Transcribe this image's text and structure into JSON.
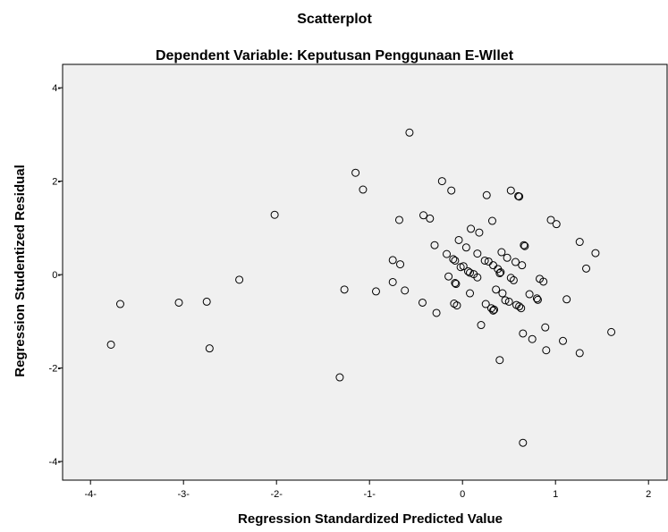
{
  "chart_data": {
    "type": "scatter",
    "title": "Scatterplot",
    "subtitle": "Dependent Variable: Keputusan Penggunaan E-Wllet",
    "xlabel": "Regression Standardized Predicted Value",
    "ylabel": "Regression Studentized Residual",
    "xlim": [
      -4.3,
      2.2
    ],
    "ylim": [
      -4.4,
      4.5
    ],
    "x_ticks": [
      -4,
      -3,
      -2,
      -1,
      0,
      1,
      2
    ],
    "x_tick_labels": [
      "-4-",
      "-3-",
      "-2-",
      "-1-",
      "0",
      "1",
      "2"
    ],
    "y_ticks": [
      4,
      2,
      0,
      -2,
      -4
    ],
    "y_tick_labels": [
      "4-",
      "2-",
      "0-",
      "-2-",
      "-4-"
    ],
    "grid": false,
    "plot_background": "#f0f0f0",
    "marker_color": "#000000",
    "points": [
      {
        "x": -3.78,
        "y": -1.5
      },
      {
        "x": -3.68,
        "y": -0.63
      },
      {
        "x": -3.05,
        "y": -0.6
      },
      {
        "x": -2.75,
        "y": -0.58
      },
      {
        "x": -2.72,
        "y": -1.58
      },
      {
        "x": -2.4,
        "y": -0.11
      },
      {
        "x": -2.02,
        "y": 1.28
      },
      {
        "x": -1.32,
        "y": -2.2
      },
      {
        "x": -1.27,
        "y": -0.32
      },
      {
        "x": -1.15,
        "y": 2.18
      },
      {
        "x": -1.07,
        "y": 1.82
      },
      {
        "x": -0.93,
        "y": -0.36
      },
      {
        "x": -0.75,
        "y": 0.31
      },
      {
        "x": -0.75,
        "y": -0.16
      },
      {
        "x": -0.68,
        "y": 1.17
      },
      {
        "x": -0.67,
        "y": 0.22
      },
      {
        "x": -0.62,
        "y": -0.34
      },
      {
        "x": -0.57,
        "y": 3.04
      },
      {
        "x": -0.43,
        "y": -0.6
      },
      {
        "x": -0.42,
        "y": 1.27
      },
      {
        "x": -0.35,
        "y": 1.2
      },
      {
        "x": -0.3,
        "y": 0.63
      },
      {
        "x": -0.28,
        "y": -0.82
      },
      {
        "x": -0.22,
        "y": 2.0
      },
      {
        "x": -0.17,
        "y": 0.44
      },
      {
        "x": -0.15,
        "y": -0.04
      },
      {
        "x": -0.12,
        "y": 1.8
      },
      {
        "x": -0.1,
        "y": 0.33
      },
      {
        "x": -0.08,
        "y": 0.3
      },
      {
        "x": -0.08,
        "y": -0.18
      },
      {
        "x": -0.07,
        "y": -0.2
      },
      {
        "x": -0.09,
        "y": -0.62
      },
      {
        "x": -0.06,
        "y": -0.66
      },
      {
        "x": -0.04,
        "y": 0.74
      },
      {
        "x": -0.02,
        "y": 0.16
      },
      {
        "x": 0.01,
        "y": 0.18
      },
      {
        "x": 0.04,
        "y": 0.58
      },
      {
        "x": 0.06,
        "y": 0.07
      },
      {
        "x": 0.08,
        "y": 0.04
      },
      {
        "x": 0.08,
        "y": -0.4
      },
      {
        "x": 0.09,
        "y": 0.98
      },
      {
        "x": 0.12,
        "y": 0.01
      },
      {
        "x": 0.16,
        "y": -0.06
      },
      {
        "x": 0.16,
        "y": 0.45
      },
      {
        "x": 0.18,
        "y": 0.9
      },
      {
        "x": 0.2,
        "y": -1.08
      },
      {
        "x": 0.24,
        "y": 0.3
      },
      {
        "x": 0.25,
        "y": -0.63
      },
      {
        "x": 0.26,
        "y": 1.7
      },
      {
        "x": 0.28,
        "y": 0.28
      },
      {
        "x": 0.31,
        "y": -0.72
      },
      {
        "x": 0.32,
        "y": 1.15
      },
      {
        "x": 0.33,
        "y": -0.77
      },
      {
        "x": 0.33,
        "y": 0.2
      },
      {
        "x": 0.34,
        "y": -0.75
      },
      {
        "x": 0.36,
        "y": -0.32
      },
      {
        "x": 0.38,
        "y": 0.12
      },
      {
        "x": 0.4,
        "y": 0.03
      },
      {
        "x": 0.4,
        "y": -1.83
      },
      {
        "x": 0.41,
        "y": 0.05
      },
      {
        "x": 0.42,
        "y": 0.48
      },
      {
        "x": 0.43,
        "y": -0.4
      },
      {
        "x": 0.46,
        "y": -0.55
      },
      {
        "x": 0.48,
        "y": 0.36
      },
      {
        "x": 0.5,
        "y": -0.58
      },
      {
        "x": 0.52,
        "y": 1.8
      },
      {
        "x": 0.52,
        "y": -0.07
      },
      {
        "x": 0.55,
        "y": -0.12
      },
      {
        "x": 0.57,
        "y": 0.27
      },
      {
        "x": 0.58,
        "y": -0.65
      },
      {
        "x": 0.6,
        "y": 1.68
      },
      {
        "x": 0.61,
        "y": 1.67
      },
      {
        "x": 0.61,
        "y": -0.68
      },
      {
        "x": 0.63,
        "y": -0.72
      },
      {
        "x": 0.64,
        "y": 0.2
      },
      {
        "x": 0.65,
        "y": -1.26
      },
      {
        "x": 0.65,
        "y": -3.6
      },
      {
        "x": 0.66,
        "y": 0.63
      },
      {
        "x": 0.67,
        "y": 0.61
      },
      {
        "x": 0.72,
        "y": -0.42
      },
      {
        "x": 0.75,
        "y": -1.38
      },
      {
        "x": 0.8,
        "y": -0.51
      },
      {
        "x": 0.81,
        "y": -0.54
      },
      {
        "x": 0.83,
        "y": -0.09
      },
      {
        "x": 0.87,
        "y": -0.15
      },
      {
        "x": 0.89,
        "y": -1.13
      },
      {
        "x": 0.9,
        "y": -1.62
      },
      {
        "x": 0.95,
        "y": 1.17
      },
      {
        "x": 1.01,
        "y": 1.08
      },
      {
        "x": 1.08,
        "y": -1.42
      },
      {
        "x": 1.12,
        "y": -0.53
      },
      {
        "x": 1.26,
        "y": 0.7
      },
      {
        "x": 1.26,
        "y": -1.68
      },
      {
        "x": 1.33,
        "y": 0.13
      },
      {
        "x": 1.43,
        "y": 0.46
      },
      {
        "x": 1.6,
        "y": -1.23
      }
    ]
  }
}
